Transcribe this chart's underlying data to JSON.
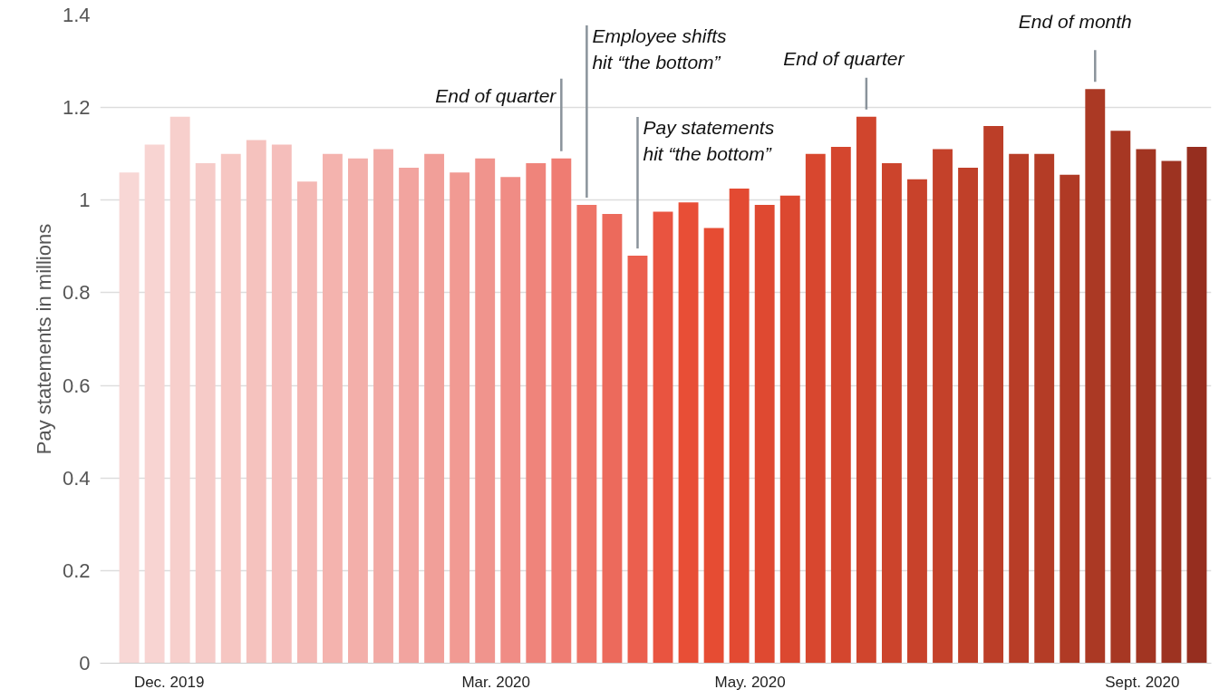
{
  "chart_data": {
    "type": "bar",
    "ylabel": "Pay statements in millions",
    "x": [
      "2019-11-28",
      "2019-12-05",
      "2019-12-12",
      "2019-12-19",
      "2019-12-26",
      "2020-01-02",
      "2020-01-09",
      "2020-01-16",
      "2020-01-23",
      "2020-01-30",
      "2020-02-06",
      "2020-02-13",
      "2020-02-20",
      "2020-02-27",
      "2020-03-05",
      "2020-03-12",
      "2020-03-19",
      "2020-03-26",
      "2020-04-02",
      "2020-04-09",
      "2020-04-16",
      "2020-04-23",
      "2020-04-30",
      "2020-05-07",
      "2020-05-14",
      "2020-05-21",
      "2020-05-28",
      "2020-06-04",
      "2020-06-11",
      "2020-06-18",
      "2020-06-25",
      "2020-07-02",
      "2020-07-09",
      "2020-07-16",
      "2020-07-23",
      "2020-07-30",
      "2020-08-06",
      "2020-08-13",
      "2020-08-20",
      "2020-08-27",
      "2020-09-03",
      "2020-09-10",
      "2020-09-17"
    ],
    "values": [
      1.06,
      1.12,
      1.18,
      1.08,
      1.1,
      1.13,
      1.12,
      1.04,
      1.1,
      1.09,
      1.11,
      1.07,
      1.1,
      1.06,
      1.09,
      1.05,
      1.08,
      1.09,
      0.99,
      0.97,
      0.88,
      0.975,
      0.995,
      0.94,
      1.025,
      0.99,
      1.01,
      1.1,
      1.115,
      1.18,
      1.08,
      1.045,
      1.11,
      1.07,
      1.16,
      1.1,
      1.1,
      1.055,
      1.24,
      1.15,
      1.11,
      1.085,
      1.115
    ],
    "colors": [
      "#f8d7d5",
      "#f8d4d2",
      "#f7cfcc",
      "#f6cbc8",
      "#f6c6c2",
      "#f5c2be",
      "#f5bebb",
      "#f4b8b4",
      "#f4b3ae",
      "#f3afaa",
      "#f2aaa5",
      "#f2a49f",
      "#f19f99",
      "#f19a93",
      "#f0948d",
      "#f08c85",
      "#ef847b",
      "#ef7c72",
      "#ee7467",
      "#ec6a5c",
      "#eb5f4e",
      "#e95440",
      "#e84e36",
      "#e64c33",
      "#e34a32",
      "#df4931",
      "#dc4830",
      "#d8472f",
      "#d4462e",
      "#d0452d",
      "#cc442c",
      "#c8422b",
      "#c4412a",
      "#c04029",
      "#bc3e28",
      "#b83d27",
      "#b43c26",
      "#b03a25",
      "#ab3924",
      "#a73723",
      "#a23522",
      "#9d3321",
      "#962e1f"
    ],
    "xlim": [
      "2019-11-20",
      "2020-09-21"
    ],
    "xticks": [
      {
        "value": "2019-12-09",
        "label": "Dec. 2019"
      },
      {
        "value": "2020-03-08",
        "label": "Mar. 2020"
      },
      {
        "value": "2020-05-17",
        "label": "May. 2020"
      },
      {
        "value": "2020-09-02",
        "label": "Sept. 2020"
      }
    ],
    "ylim": [
      0,
      1.4
    ],
    "yticks": [
      0,
      {
        "value": 0.2,
        "label": "0.2"
      },
      {
        "value": 0.4,
        "label": "0.4"
      },
      {
        "value": 0.6,
        "label": "0.6"
      },
      {
        "value": 0.8,
        "label": "0.8"
      },
      1,
      {
        "value": 1.2,
        "label": "1.2"
      },
      {
        "value": 1.4,
        "label": "1.4"
      }
    ],
    "grid": "y",
    "annotations": [
      {
        "text": "End of quarter",
        "x": "2020-03-26",
        "y": 1.09
      },
      {
        "text": "Employee shifts\nhit “the bottom”",
        "x": "2020-04-02",
        "y": 0.99
      },
      {
        "text": "Pay statements\nhit “the bottom”",
        "x": "2020-04-16",
        "y": 0.88
      },
      {
        "text": "End of quarter",
        "x": "2020-06-18",
        "y": 1.18
      },
      {
        "text": "End of month",
        "x": "2020-08-20",
        "y": 1.24
      }
    ]
  }
}
